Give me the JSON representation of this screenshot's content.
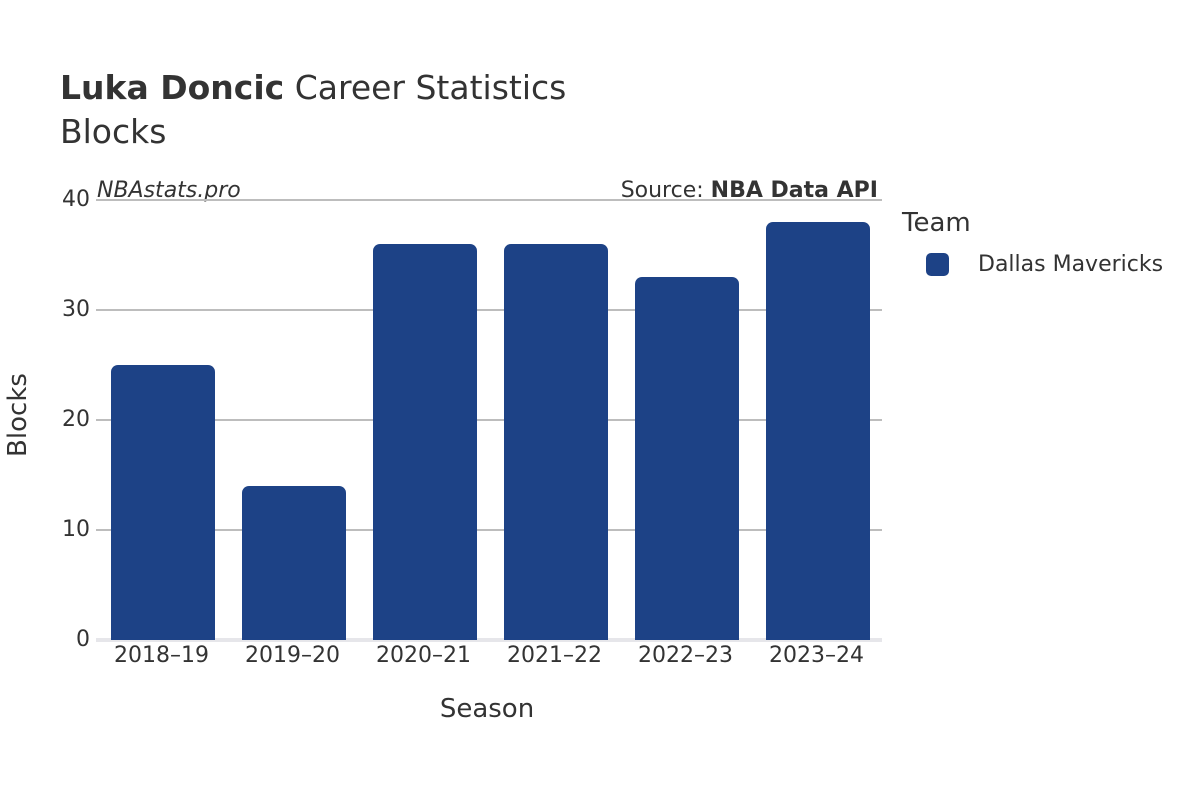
{
  "header": {
    "title_bold": "Luka Doncic",
    "title_rest": " Career Statistics",
    "subtitle": "Blocks",
    "watermark": "NBAstats.pro",
    "source_prefix": "Source: ",
    "source_name": "NBA Data API"
  },
  "axes": {
    "x_label": "Season",
    "y_label": "Blocks",
    "y_ticks": [
      "0",
      "10",
      "20",
      "30",
      "40"
    ]
  },
  "legend": {
    "title": "Team",
    "items": [
      {
        "label": "Dallas Mavericks",
        "color": "#1d4286"
      }
    ]
  },
  "chart_data": {
    "type": "bar",
    "title": "Luka Doncic Career Statistics",
    "subtitle": "Blocks",
    "categories": [
      "2018–19",
      "2019–20",
      "2020–21",
      "2021–22",
      "2022–23",
      "2023–24"
    ],
    "series": [
      {
        "name": "Dallas Mavericks",
        "color": "#1d4286",
        "values": [
          25,
          14,
          36,
          36,
          33,
          38
        ]
      }
    ],
    "xlabel": "Season",
    "ylabel": "Blocks",
    "ylim": [
      0,
      40
    ],
    "yticks": [
      0,
      10,
      20,
      30,
      40
    ],
    "grid": true,
    "legend_position": "right",
    "annotations": [
      "NBAstats.pro",
      "Source: NBA Data API"
    ]
  }
}
